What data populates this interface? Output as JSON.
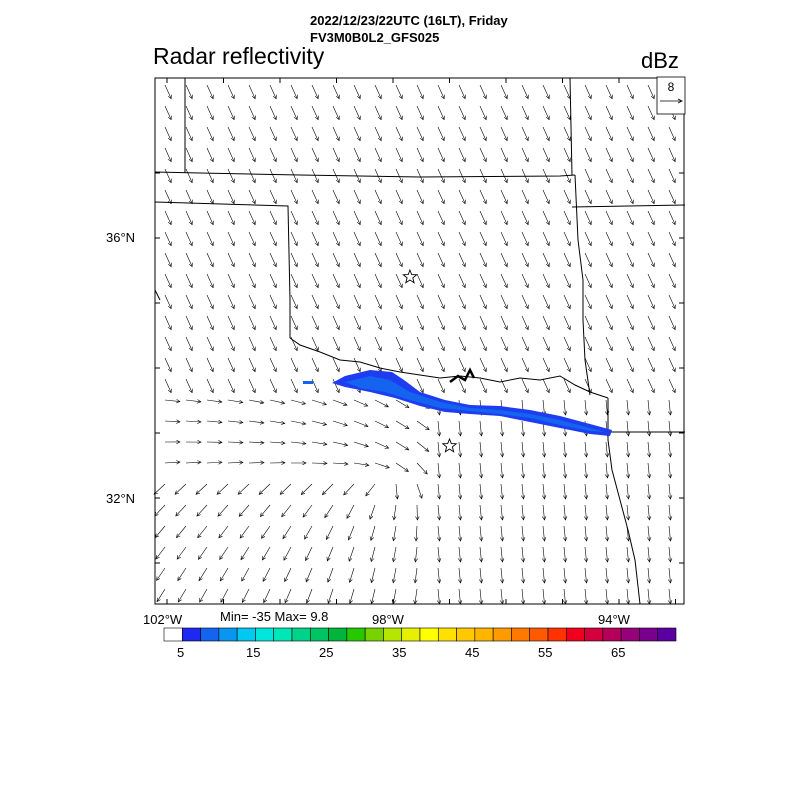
{
  "header": {
    "line1": "2022/12/23/22UTC (16LT), Friday",
    "line2": "FV3M0B0L2_GFS025",
    "field": "Radar reflectivity",
    "units": "dBz"
  },
  "vector_ref": {
    "magnitude": "8"
  },
  "axes": {
    "lat_labels": [
      "36°N",
      "32°N"
    ],
    "lon_labels": [
      "102°W",
      "98°W",
      "94°W"
    ]
  },
  "stats": {
    "text": "Min= -35 Max= 9.8"
  },
  "colorbar": {
    "labels": [
      "5",
      "15",
      "25",
      "35",
      "45",
      "55",
      "65"
    ],
    "colors": [
      "#ffffff",
      "#1e28f0",
      "#1464f0",
      "#0a96f0",
      "#00c8f0",
      "#00e6dc",
      "#00e6b4",
      "#00d28c",
      "#00c364",
      "#00b43c",
      "#28c800",
      "#78d200",
      "#b4e600",
      "#e6f000",
      "#ffff00",
      "#ffe100",
      "#ffc800",
      "#ffb400",
      "#ff9b00",
      "#ff7800",
      "#ff5a00",
      "#ff3200",
      "#f0001e",
      "#d2003c",
      "#b4005a",
      "#960078",
      "#78008c",
      "#5a00a0"
    ]
  },
  "markers": [
    {
      "name": "star-north",
      "lon": -97.7,
      "lat": 35.4
    },
    {
      "name": "star-south",
      "lon": -97.0,
      "lat": 32.8
    }
  ],
  "legend": {
    "position": "top-right"
  }
}
